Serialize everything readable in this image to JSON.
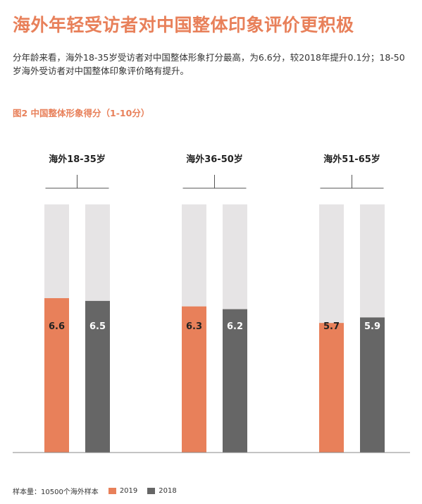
{
  "header": {
    "title": "海外年轻受访者对中国整体印象评价更积极",
    "intro": "分年龄来看，海外18-35岁受访者对中国整体形象打分最高，为6.6分，较2018年提升0.1分；18-50岁海外受访者对中国整体印象评价略有提升。"
  },
  "figure": {
    "label": "图2  中国整体形象得分（1-10分）"
  },
  "footer": {
    "sample_note": "样本量：10500个海外样本"
  },
  "colors": {
    "accent": "#e8805a",
    "series_2019": "#e8805a",
    "series_2018": "#666666",
    "bar_background": "#e6e4e5",
    "baseline": "#888888"
  },
  "chart_data": {
    "type": "bar",
    "categories": [
      "海外18-35岁",
      "海外36-50岁",
      "海外51-65岁"
    ],
    "series": [
      {
        "name": "2019",
        "values": [
          6.6,
          6.3,
          5.7
        ]
      },
      {
        "name": "2018",
        "values": [
          6.5,
          6.2,
          5.9
        ]
      }
    ],
    "value_labels": [
      [
        "6.6",
        "6.3",
        "5.7"
      ],
      [
        "6.5",
        "6.2",
        "5.9"
      ]
    ],
    "ylim": [
      1,
      10
    ],
    "grid": false,
    "legend": "bottom"
  }
}
